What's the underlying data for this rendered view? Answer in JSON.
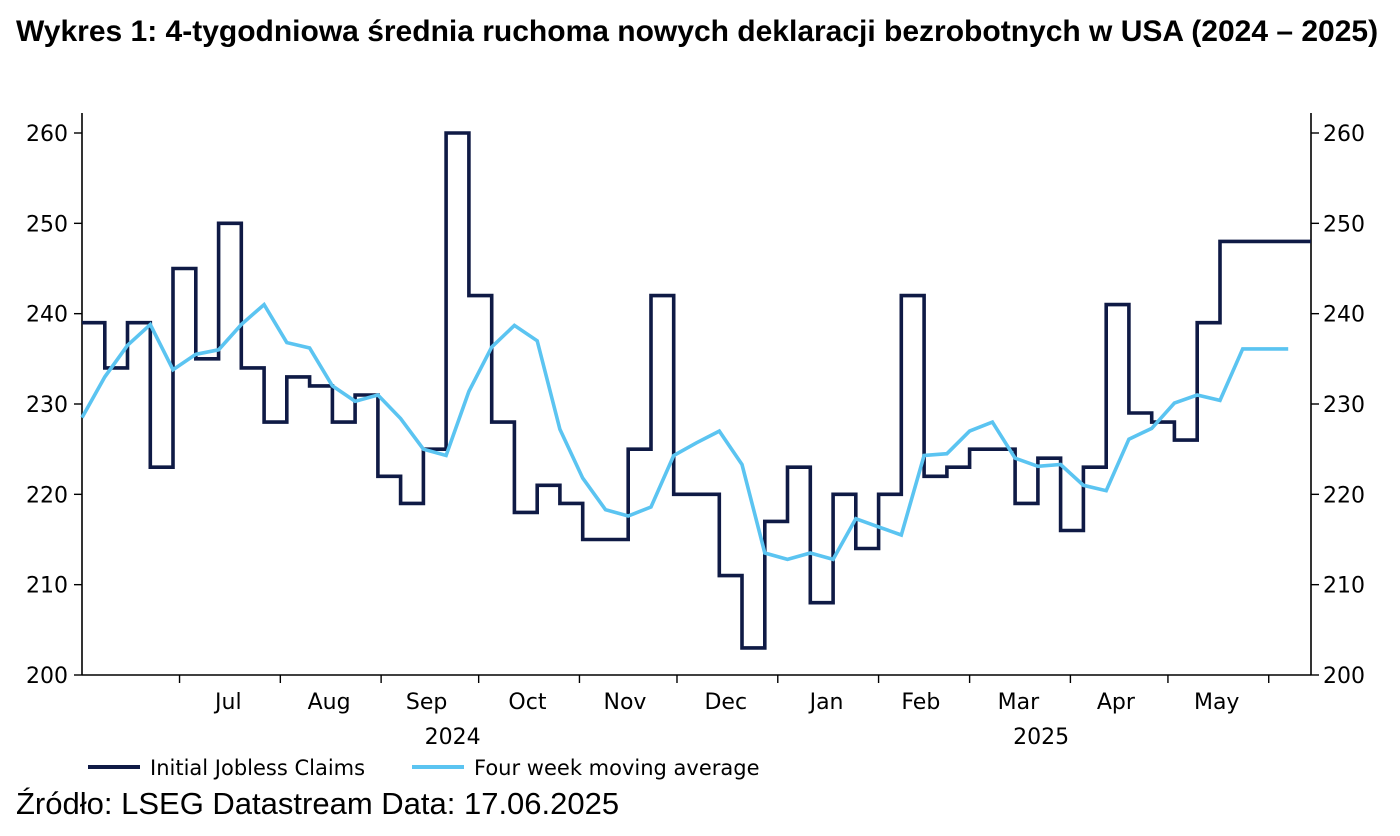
{
  "title": "Wykres 1: 4-tygodniowa średnia ruchoma nowych deklaracji bezrobotnych w USA (2024 – 2025)",
  "source": "Źródło: LSEG Datastream Data: 17.06.2025",
  "colors": {
    "claims": "#0f1a45",
    "average": "#5bc4f1",
    "axis": "#000000"
  },
  "chart_data": {
    "type": "line",
    "title": "Wykres 1: 4-tygodniowa średnia ruchoma nowych deklaracji bezrobotnych w USA (2024 – 2025)",
    "xlabel": "",
    "ylabel": "",
    "ylim": [
      200,
      260
    ],
    "y_ticks": [
      200,
      210,
      220,
      230,
      240,
      250,
      260
    ],
    "y_axis": "both",
    "grid": false,
    "legend_position": "bottom-left",
    "x_start": "2024-06-01",
    "x_end": "2025-06-14",
    "month_labels": [
      {
        "label": "Jul",
        "date": "2024-07-16"
      },
      {
        "label": "Aug",
        "date": "2024-08-16"
      },
      {
        "label": "Sep",
        "date": "2024-09-15"
      },
      {
        "label": "Oct",
        "date": "2024-10-16"
      },
      {
        "label": "Nov",
        "date": "2024-11-15"
      },
      {
        "label": "Dec",
        "date": "2024-12-16"
      },
      {
        "label": "Jan",
        "date": "2025-01-16"
      },
      {
        "label": "Feb",
        "date": "2025-02-14"
      },
      {
        "label": "Mar",
        "date": "2025-03-16"
      },
      {
        "label": "Apr",
        "date": "2025-04-15"
      },
      {
        "label": "May",
        "date": "2025-05-16"
      }
    ],
    "month_ticks": [
      "2024-07-01",
      "2024-08-01",
      "2024-09-01",
      "2024-10-01",
      "2024-11-01",
      "2024-12-01",
      "2025-01-01",
      "2025-02-01",
      "2025-03-01",
      "2025-04-01",
      "2025-05-01",
      "2025-06-01"
    ],
    "year_labels": [
      {
        "label": "2024",
        "date": "2024-09-23"
      },
      {
        "label": "2025",
        "date": "2025-03-23"
      }
    ],
    "series": [
      {
        "name": "Initial Jobless Claims",
        "style": "step",
        "x": [
          "2024-06-01",
          "2024-06-08",
          "2024-06-15",
          "2024-06-22",
          "2024-06-29",
          "2024-07-06",
          "2024-07-13",
          "2024-07-20",
          "2024-07-27",
          "2024-08-03",
          "2024-08-10",
          "2024-08-17",
          "2024-08-24",
          "2024-08-31",
          "2024-09-07",
          "2024-09-14",
          "2024-09-21",
          "2024-09-28",
          "2024-10-05",
          "2024-10-12",
          "2024-10-19",
          "2024-10-26",
          "2024-11-02",
          "2024-11-09",
          "2024-11-16",
          "2024-11-23",
          "2024-11-30",
          "2024-12-07",
          "2024-12-14",
          "2024-12-21",
          "2024-12-28",
          "2025-01-04",
          "2025-01-11",
          "2025-01-18",
          "2025-01-25",
          "2025-02-01",
          "2025-02-08",
          "2025-02-15",
          "2025-02-22",
          "2025-03-01",
          "2025-03-08",
          "2025-03-15",
          "2025-03-22",
          "2025-03-29",
          "2025-04-05",
          "2025-04-12",
          "2025-04-19",
          "2025-04-26",
          "2025-05-03",
          "2025-05-10",
          "2025-05-17",
          "2025-05-24",
          "2025-05-31",
          "2025-06-07",
          "2025-06-14"
        ],
        "values": [
          239,
          234,
          239,
          223,
          245,
          235,
          250,
          234,
          228,
          233,
          232,
          228,
          231,
          222,
          219,
          225,
          260,
          242,
          228,
          218,
          221,
          219,
          215,
          215,
          225,
          242,
          220,
          220,
          211,
          203,
          217,
          223,
          208,
          220,
          214,
          220,
          242,
          222,
          223,
          225,
          225,
          219,
          224,
          216,
          223,
          241,
          229,
          228,
          226,
          239,
          248,
          248,
          248,
          248,
          248
        ]
      },
      {
        "name": "Four week moving average",
        "style": "line",
        "x": [
          "2024-06-01",
          "2024-06-08",
          "2024-06-15",
          "2024-06-22",
          "2024-06-29",
          "2024-07-06",
          "2024-07-13",
          "2024-07-20",
          "2024-07-27",
          "2024-08-03",
          "2024-08-10",
          "2024-08-17",
          "2024-08-24",
          "2024-08-31",
          "2024-09-07",
          "2024-09-14",
          "2024-09-21",
          "2024-09-28",
          "2024-10-05",
          "2024-10-12",
          "2024-10-19",
          "2024-10-26",
          "2024-11-02",
          "2024-11-09",
          "2024-11-16",
          "2024-11-23",
          "2024-11-30",
          "2024-12-07",
          "2024-12-14",
          "2024-12-21",
          "2024-12-28",
          "2025-01-04",
          "2025-01-11",
          "2025-01-18",
          "2025-01-25",
          "2025-02-01",
          "2025-02-08",
          "2025-02-15",
          "2025-02-22",
          "2025-03-01",
          "2025-03-08",
          "2025-03-15",
          "2025-03-22",
          "2025-03-29",
          "2025-04-05",
          "2025-04-12",
          "2025-04-19",
          "2025-04-26",
          "2025-05-03",
          "2025-05-10",
          "2025-05-17",
          "2025-05-24",
          "2025-05-31",
          "2025-06-07"
        ],
        "values": [
          228.5,
          233,
          236.5,
          238.8,
          233.8,
          235.5,
          236,
          238.8,
          241,
          236.8,
          236.2,
          232,
          230.3,
          231,
          228.4,
          225,
          224.3,
          231.4,
          236.3,
          238.7,
          237,
          227.2,
          221.8,
          218.3,
          217.6,
          218.6,
          224.3,
          225.7,
          227,
          223.3,
          213.5,
          212.8,
          213.5,
          212.8,
          217.3,
          216.4,
          215.5,
          224.3,
          224.5,
          227,
          228,
          224,
          223.1,
          223.3,
          221,
          220.4,
          226.1,
          227.3,
          230.1,
          231,
          230.4,
          236.1,
          236.1,
          236.1
        ]
      }
    ]
  }
}
